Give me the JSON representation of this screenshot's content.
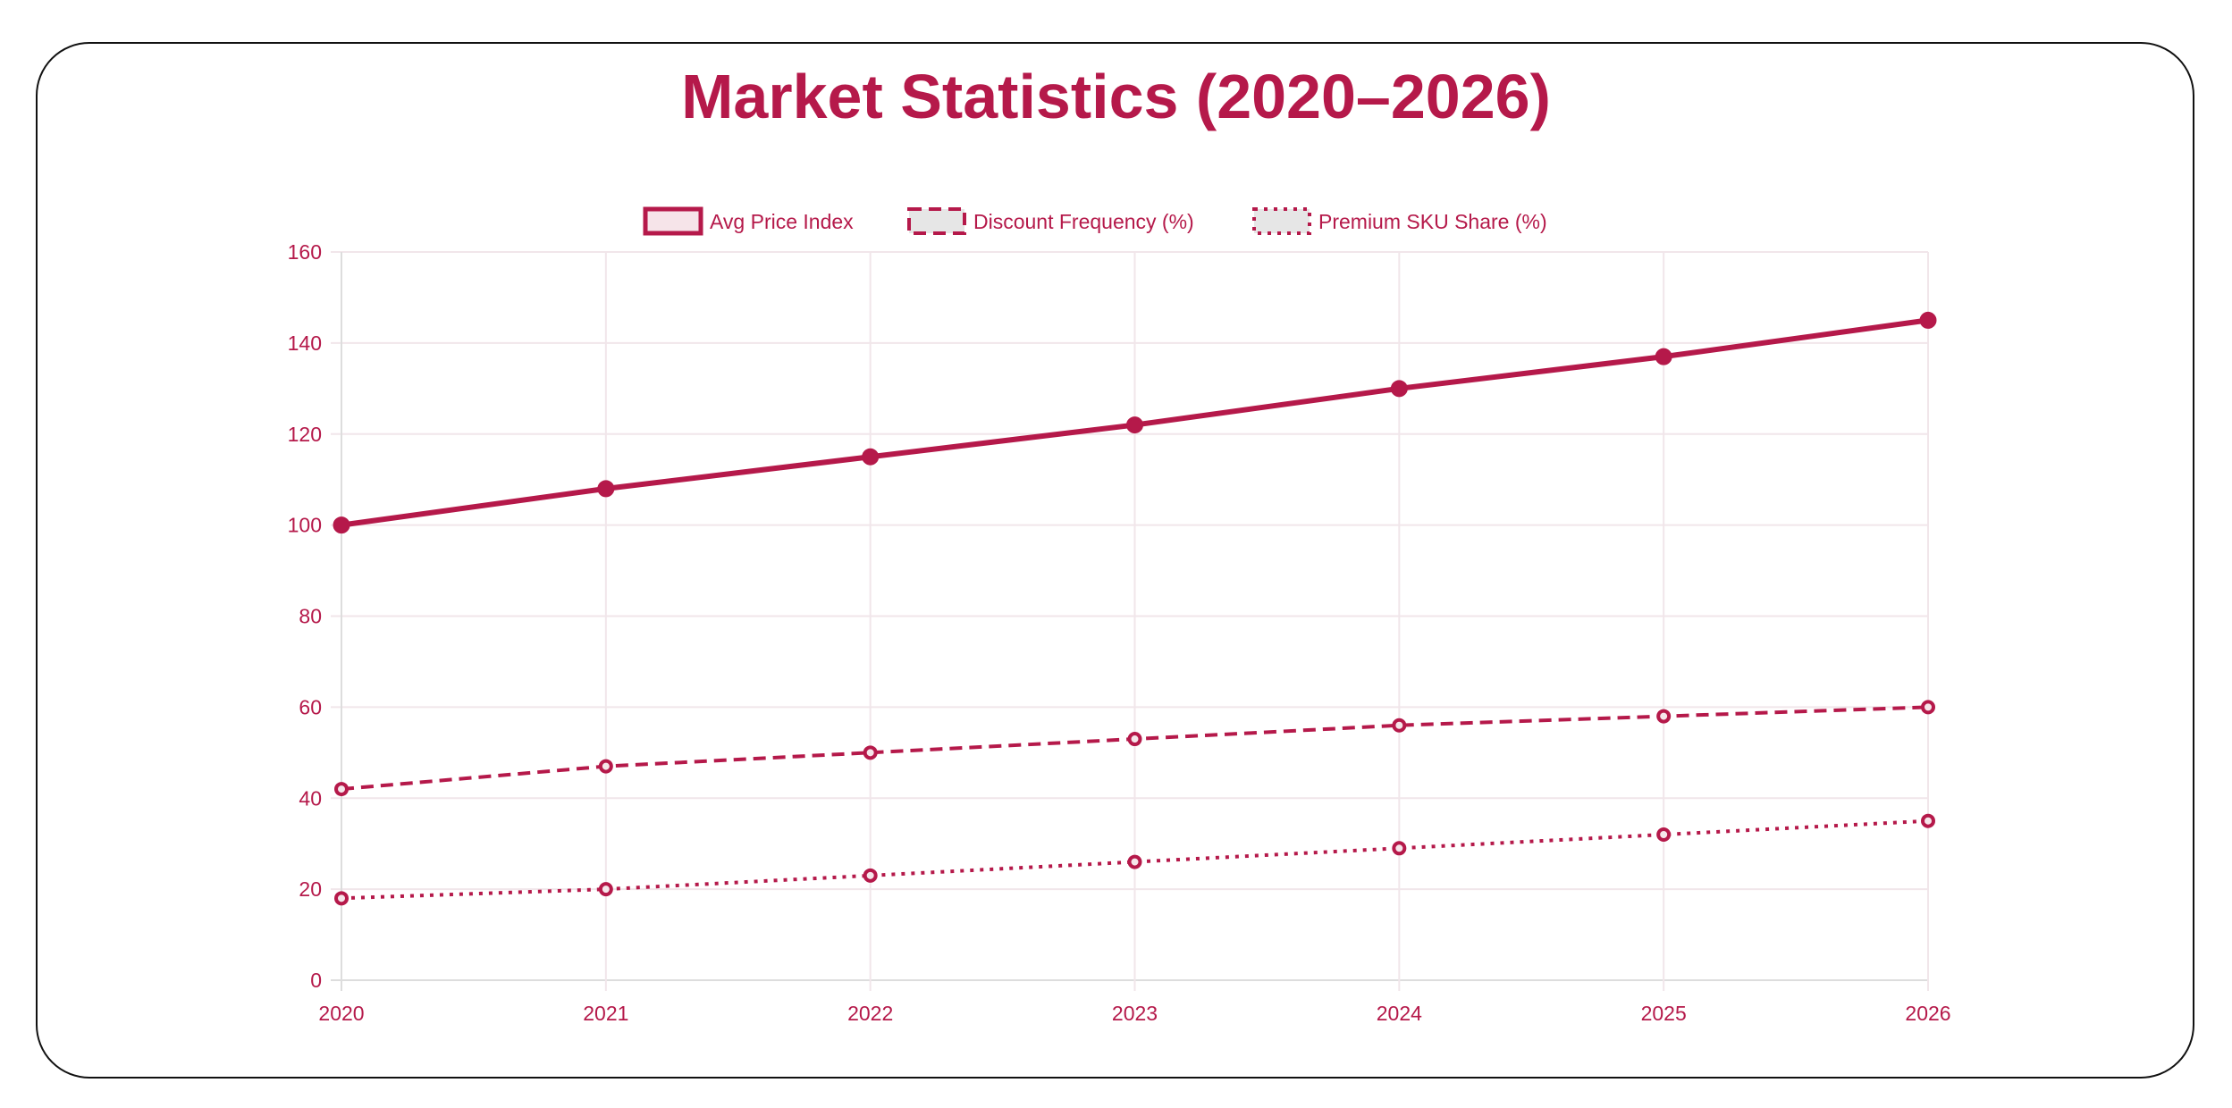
{
  "chart_data": {
    "type": "line",
    "title": "Market Statistics (2020–2026)",
    "categories": [
      "2020",
      "2021",
      "2022",
      "2023",
      "2024",
      "2025",
      "2026"
    ],
    "ylim": [
      0,
      160
    ],
    "yticks": [
      "0",
      "20",
      "40",
      "60",
      "80",
      "100",
      "120",
      "140",
      "160"
    ],
    "grid": true,
    "legend_position": "top",
    "color": "#b5194a",
    "series": [
      {
        "name": "Avg Price Index",
        "style": "solid",
        "values": [
          100,
          108,
          115,
          122,
          130,
          137,
          145
        ]
      },
      {
        "name": "Discount Frequency (%)",
        "style": "dashed",
        "values": [
          42,
          47,
          50,
          53,
          56,
          58,
          60
        ]
      },
      {
        "name": "Premium SKU Share (%)",
        "style": "dotted",
        "values": [
          18,
          20,
          23,
          26,
          29,
          32,
          35
        ]
      }
    ]
  }
}
